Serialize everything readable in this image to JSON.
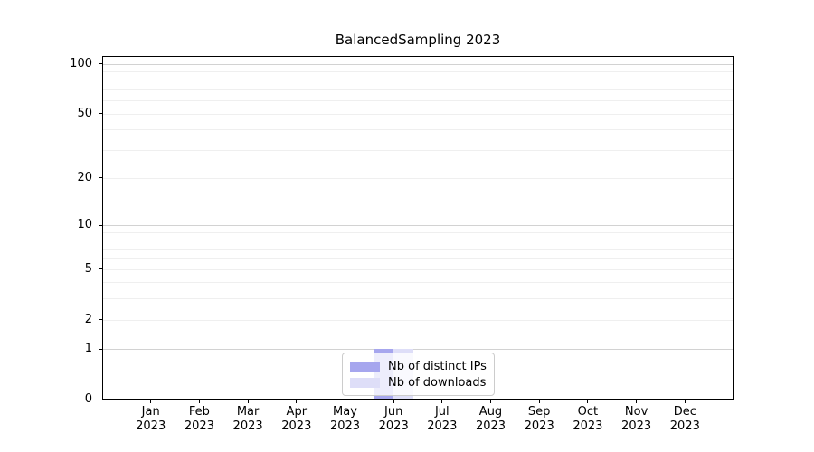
{
  "title": "BalancedSampling 2023",
  "legend": {
    "position": "lower center",
    "entries": [
      {
        "label": "Nb of distinct IPs",
        "color": "#a6a6ee"
      },
      {
        "label": "Nb of downloads",
        "color": "#dedef8"
      }
    ]
  },
  "chart_data": {
    "type": "bar",
    "title": "BalancedSampling 2023",
    "xlabel": "",
    "ylabel": "",
    "categories": [
      "Jan 2023",
      "Feb 2023",
      "Mar 2023",
      "Apr 2023",
      "May 2023",
      "Jun 2023",
      "Jul 2023",
      "Aug 2023",
      "Sep 2023",
      "Oct 2023",
      "Nov 2023",
      "Dec 2023"
    ],
    "series": [
      {
        "name": "Nb of distinct IPs",
        "color": "#a6a6ee",
        "values": [
          0,
          0,
          0,
          0,
          0,
          1,
          0,
          0,
          0,
          0,
          0,
          0
        ]
      },
      {
        "name": "Nb of downloads",
        "color": "#dedef8",
        "values": [
          0,
          0,
          0,
          0,
          0,
          1,
          0,
          0,
          0,
          0,
          0,
          0
        ]
      }
    ],
    "yscale": "symlog",
    "ylim": [
      0,
      111
    ],
    "ytick_values": [
      0,
      1,
      2,
      5,
      10,
      20,
      50,
      100
    ],
    "ytick_labels": [
      "0",
      "1",
      "2",
      "5",
      "10",
      "20",
      "50",
      "100"
    ],
    "major_gridline_values": [
      1,
      10,
      100
    ],
    "minor_gridline_values": [
      2,
      3,
      4,
      5,
      6,
      7,
      8,
      9,
      20,
      30,
      40,
      50,
      60,
      70,
      80,
      90
    ],
    "grid": "horizontal",
    "legend_position": "lower center"
  }
}
